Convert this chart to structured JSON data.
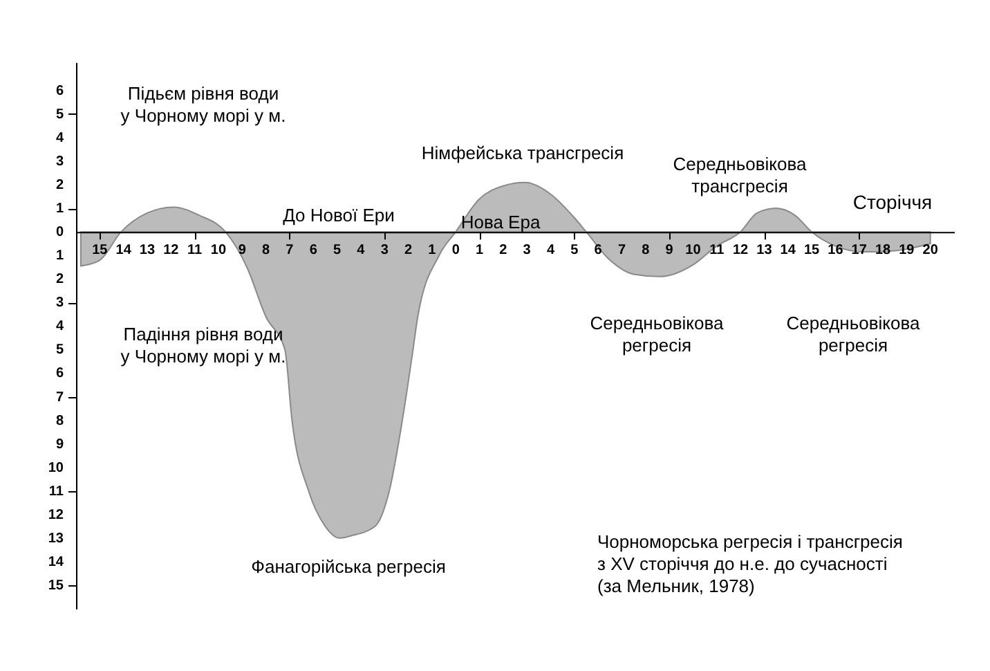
{
  "chart_data": {
    "type": "area",
    "xlabel": "Сторіччя",
    "x": [
      -15.8,
      -15,
      -14.1,
      -13,
      -11.9,
      -10.8,
      -9.7,
      -8.8,
      -8,
      -7.2,
      -6.9,
      -6.2,
      -5.5,
      -4.9,
      -4.4,
      -3.4,
      -2.8,
      -2.25,
      -1.8,
      -1.6,
      -0.7,
      0,
      1,
      2,
      2.9,
      4,
      5,
      5.5,
      6.5,
      7.5,
      8.6,
      10,
      11,
      12,
      12.7,
      13.5,
      14.3,
      15,
      16,
      17.2,
      18.5,
      20
    ],
    "series": [
      {
        "color": "#bbbbbb",
        "values": [
          -1.45,
          -1.2,
          0,
          0.8,
          1.05,
          0.7,
          0,
          -1.5,
          -3.6,
          -5,
          -8,
          -11,
          -12.5,
          -13,
          -12.9,
          -12.5,
          -11,
          -8,
          -5,
          -3.6,
          -1,
          0,
          1.4,
          1.95,
          2.1,
          1.6,
          0.6,
          0,
          -1.2,
          -1.8,
          -1.9,
          -1.4,
          -0.6,
          0,
          0.8,
          1,
          0.7,
          0,
          -0.6,
          -0.85,
          -0.8,
          -0.5
        ]
      }
    ],
    "xlim": [
      -16,
      21
    ],
    "ylim": [
      -16,
      7.2
    ],
    "xticks": [
      {
        "value": -15,
        "label": "15"
      },
      {
        "value": -14,
        "label": "14"
      },
      {
        "value": -13,
        "label": "13"
      },
      {
        "value": -12,
        "label": "12"
      },
      {
        "value": -11,
        "label": "11"
      },
      {
        "value": -10,
        "label": "10"
      },
      {
        "value": -9,
        "label": "9"
      },
      {
        "value": -8,
        "label": "8"
      },
      {
        "value": -7,
        "label": "7"
      },
      {
        "value": -6,
        "label": "6"
      },
      {
        "value": -5,
        "label": "5"
      },
      {
        "value": -4,
        "label": "4"
      },
      {
        "value": -3,
        "label": "3"
      },
      {
        "value": -2,
        "label": "2"
      },
      {
        "value": -1,
        "label": "1"
      },
      0,
      1,
      2,
      3,
      4,
      5,
      6,
      7,
      8,
      9,
      10,
      11,
      12,
      13,
      14,
      15,
      16,
      17,
      18,
      19,
      20
    ],
    "yticks": [
      {
        "value": -15,
        "label": "15"
      },
      {
        "value": -14,
        "label": "14"
      },
      {
        "value": -13,
        "label": "13"
      },
      {
        "value": -12,
        "label": "12"
      },
      {
        "value": -11,
        "label": "11"
      },
      {
        "value": -10,
        "label": "10"
      },
      {
        "value": -9,
        "label": "9"
      },
      {
        "value": -8,
        "label": "8"
      },
      {
        "value": -7,
        "label": "7"
      },
      {
        "value": -6,
        "label": "6"
      },
      {
        "value": -5,
        "label": "5"
      },
      {
        "value": -4,
        "label": "4"
      },
      {
        "value": -3,
        "label": "3"
      },
      {
        "value": -2,
        "label": "2"
      },
      {
        "value": -1,
        "label": "1"
      },
      0,
      1,
      2,
      3,
      4,
      5,
      6
    ],
    "grid": false,
    "annotations": [
      "Підьєм рівня води\nу Чорному морі у м.",
      "Падіння рівня води\nу Чорному морі у м.",
      "До Нової Ери",
      "Нова Ера",
      "Німфейська трансгресія",
      "Середньовікова\nтрансгресія",
      "Середньовікова\nрегресія",
      "Середньовікова\nрегресія",
      "Фанагорійська  регресія",
      "Чорноморська регресія і трансгресія\nз  XV сторіччя до н.е. до сучасності\n(за Мельник, 1978)"
    ]
  }
}
